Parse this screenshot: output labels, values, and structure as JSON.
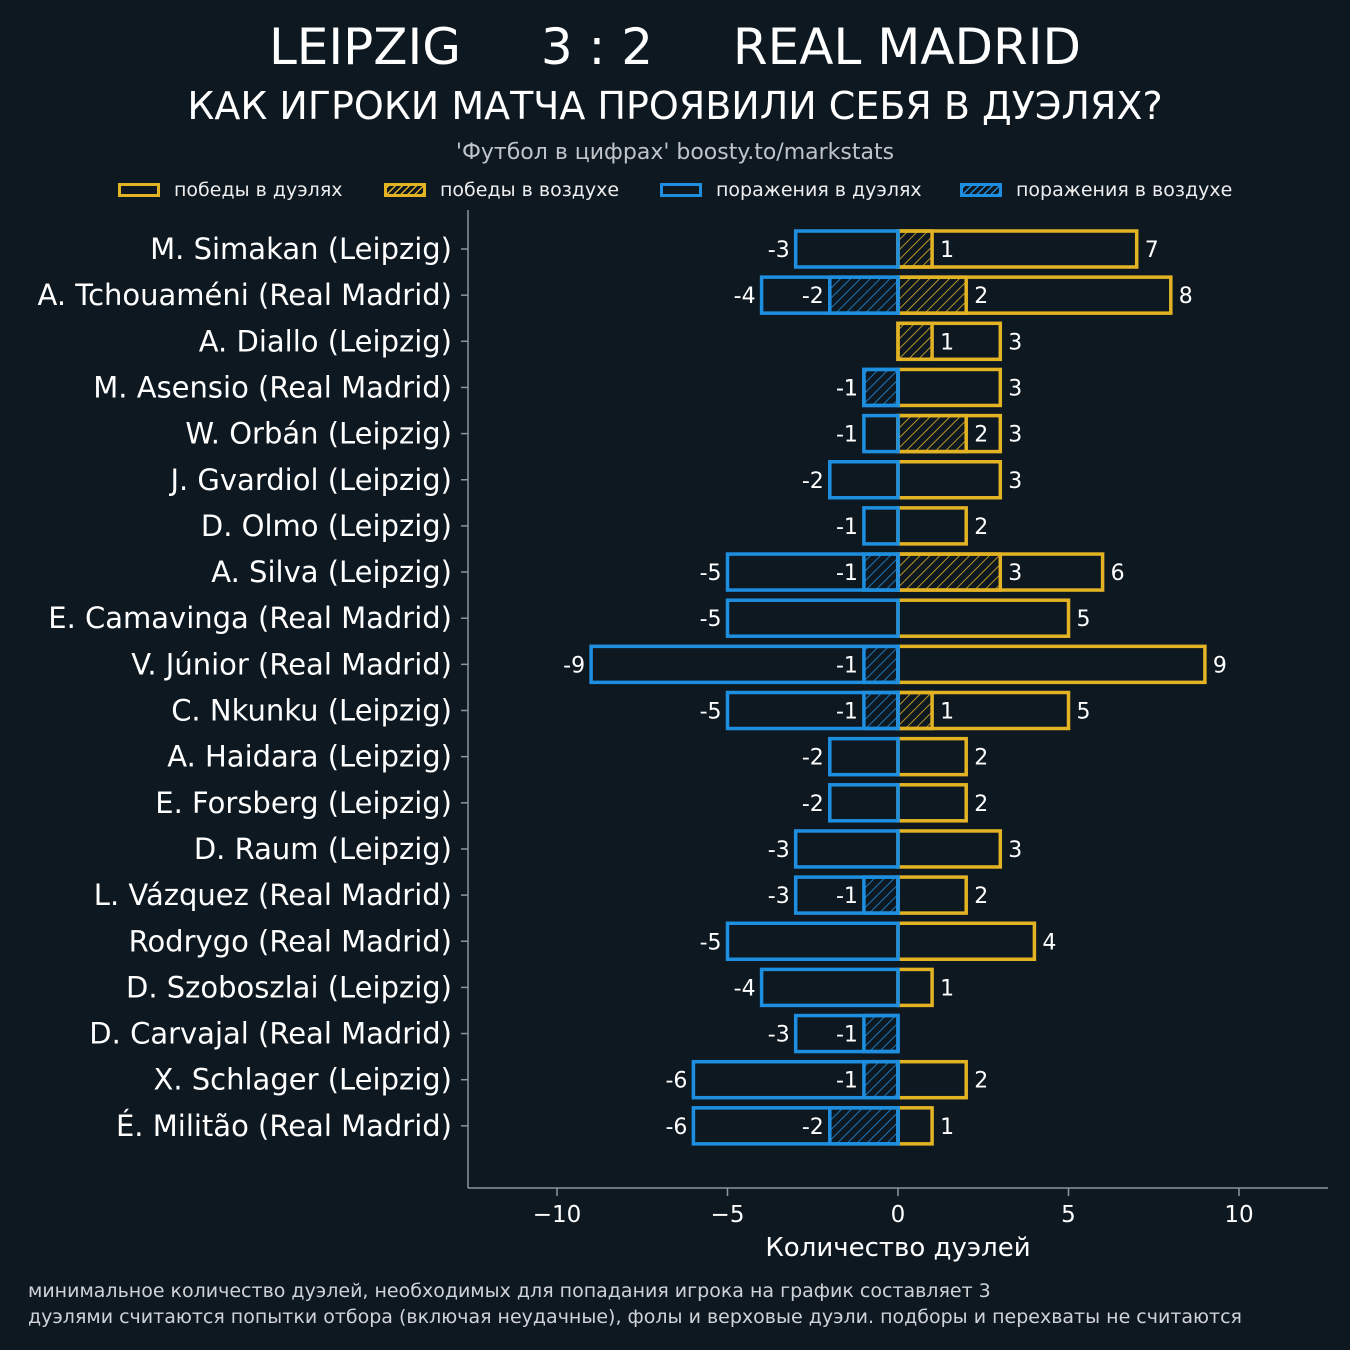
{
  "header": {
    "team_home": "LEIPZIG",
    "score": "3 : 2",
    "team_away": "REAL MADRID",
    "title": "КАК ИГРОКИ МАТЧА ПРОЯВИЛИ СЕБЯ В ДУЭЛЯХ?",
    "source": "'Футбол в цифрах' boosty.to/markstats"
  },
  "legend": [
    {
      "label": "победы в дуэлях",
      "color": "#e3b324",
      "hatch": false
    },
    {
      "label": "победы в воздухе",
      "color": "#e3b324",
      "hatch": true
    },
    {
      "label": "поражения в дуэлях",
      "color": "#1e8fe0",
      "hatch": false
    },
    {
      "label": "поражения в воздухе",
      "color": "#1e8fe0",
      "hatch": true
    }
  ],
  "notes": [
    "минимальное количество дуэлей, необходимых для попадания игрока на график составляет 3",
    "дуэлями считаются попытки отбора (включая неудачные), фолы и верховые дуэли. подборы и перехваты не считаются"
  ],
  "colors": {
    "background": "#0e1821",
    "wins": "#e3b324",
    "losses": "#1e8fe0",
    "axis": "#8a96a0"
  },
  "chart_data": {
    "type": "bar",
    "orientation": "horizontal-diverging",
    "xlabel": "Количество дуэлей",
    "xlim": [
      -12.6,
      12.6
    ],
    "xticks": [
      -10,
      -5,
      0,
      5,
      10
    ],
    "xtick_labels": [
      "−10",
      "−5",
      "0",
      "5",
      "10"
    ],
    "categories": [
      "M. Simakan (Leipzig)",
      "A. Tchouaméni (Real Madrid)",
      "A. Diallo (Leipzig)",
      "M. Asensio (Real Madrid)",
      "W. Orbán (Leipzig)",
      "J. Gvardiol (Leipzig)",
      "D. Olmo (Leipzig)",
      "A. Silva (Leipzig)",
      "E. Camavinga (Real Madrid)",
      "V. Júnior (Real Madrid)",
      "C. Nkunku (Leipzig)",
      "A. Haidara (Leipzig)",
      "E. Forsberg (Leipzig)",
      "D. Raum (Leipzig)",
      "L. Vázquez (Real Madrid)",
      "Rodrygo (Real Madrid)",
      "D. Szoboszlai (Leipzig)",
      "D. Carvajal (Real Madrid)",
      "X. Schlager (Leipzig)",
      "É. Militão (Real Madrid)"
    ],
    "series": [
      {
        "name": "победы в дуэлях",
        "values": [
          7,
          8,
          3,
          3,
          3,
          3,
          2,
          6,
          5,
          9,
          5,
          2,
          2,
          3,
          2,
          4,
          1,
          0,
          2,
          1
        ]
      },
      {
        "name": "победы в воздухе",
        "values": [
          1,
          2,
          1,
          0,
          2,
          0,
          0,
          3,
          0,
          0,
          1,
          0,
          0,
          0,
          0,
          0,
          0,
          0,
          0,
          0
        ]
      },
      {
        "name": "поражения в дуэлях",
        "values": [
          -3,
          -4,
          0,
          -1,
          -1,
          -2,
          -1,
          -5,
          -5,
          -9,
          -5,
          -2,
          -2,
          -3,
          -3,
          -5,
          -4,
          -3,
          -6,
          -6
        ]
      },
      {
        "name": "поражения в воздухе",
        "values": [
          0,
          -2,
          0,
          -1,
          0,
          0,
          0,
          -1,
          0,
          -1,
          -1,
          0,
          0,
          0,
          -1,
          0,
          0,
          -1,
          -1,
          -2
        ]
      }
    ]
  }
}
